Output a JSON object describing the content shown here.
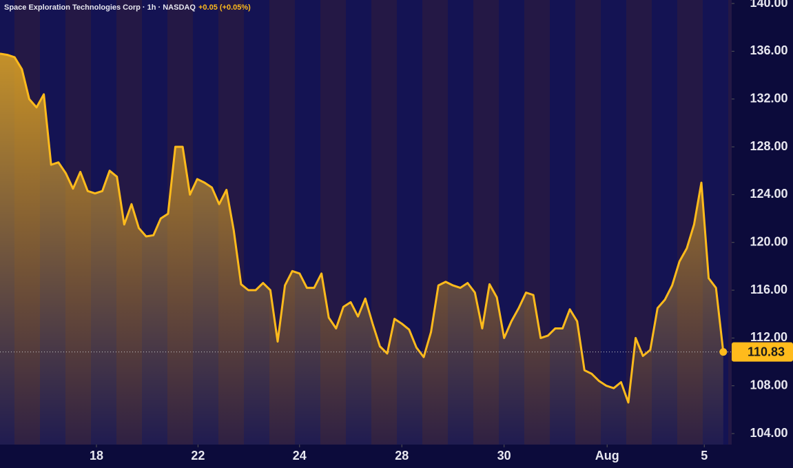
{
  "chart_data": {
    "type": "line",
    "title": "Space Exploration Technologies Corp · 1h · NASDAQ",
    "subtitle": "+0.05 (+0.05%)",
    "x": [
      0,
      1,
      2,
      3,
      4,
      5,
      6,
      7,
      8,
      9,
      10,
      11,
      12,
      13,
      14,
      15,
      16,
      17,
      18,
      19,
      20,
      21,
      22,
      23,
      24,
      25,
      26,
      27,
      28,
      29,
      30,
      31,
      32,
      33,
      34,
      35,
      36,
      37,
      38,
      39,
      40,
      41,
      42,
      43,
      44,
      45,
      46,
      47,
      48,
      49,
      50,
      51,
      52,
      53,
      54,
      55,
      56,
      57,
      58,
      59,
      60,
      61,
      62,
      63,
      64,
      65,
      66,
      67,
      68,
      69,
      70,
      71,
      72,
      73,
      74,
      75,
      76,
      77,
      78,
      79,
      80,
      81,
      82,
      83,
      84,
      85,
      86,
      87,
      88,
      89,
      90,
      91,
      92,
      93,
      94,
      95,
      96,
      97,
      98,
      99
    ],
    "series": [
      {
        "color": "#ffbb1c",
        "values": [
          135.8,
          135.7,
          135.5,
          134.5,
          132,
          131.3,
          132.4,
          126.5,
          126.7,
          125.8,
          124.5,
          125.9,
          124.3,
          124.1,
          124.3,
          126,
          125.5,
          121.5,
          123.2,
          121.2,
          120.5,
          120.6,
          122,
          122.4,
          128,
          128,
          124,
          125.3,
          125,
          124.6,
          123.2,
          124.4,
          121,
          116.5,
          116,
          116,
          116.6,
          116,
          111.7,
          116.4,
          117.6,
          117.4,
          116.2,
          116.2,
          117.4,
          113.7,
          112.8,
          114.6,
          115,
          113.8,
          115.3,
          113.2,
          111.3,
          110.7,
          113.6,
          113.2,
          112.7,
          111.2,
          110.4,
          112.5,
          116.4,
          116.7,
          116.4,
          116.2,
          116.6,
          115.8,
          112.8,
          116.5,
          115.4,
          112,
          113.4,
          114.5,
          115.8,
          115.6,
          112,
          112.2,
          112.8,
          112.8,
          114.4,
          113.4,
          109.3,
          109,
          108.4,
          108,
          107.8,
          108.3,
          106.6,
          112,
          110.5,
          111,
          114.5,
          115.2,
          116.4,
          118.4,
          119.5,
          121.5,
          125,
          117,
          116.2,
          110.83
        ]
      }
    ],
    "xlim": [
      0,
      99.3
    ],
    "xticks": [
      {
        "value": 13.2,
        "label": "18"
      },
      {
        "value": 27.1,
        "label": "22"
      },
      {
        "value": 41,
        "label": "24"
      },
      {
        "value": 55,
        "label": "28"
      },
      {
        "value": 69,
        "label": "30"
      },
      {
        "value": 83.1,
        "label": "Aug"
      },
      {
        "value": 96.4,
        "label": "5"
      }
    ],
    "ylim": [
      103.08,
      140.29
    ],
    "yticks": [
      {
        "value": 104,
        "label": "104.00"
      },
      {
        "value": 108,
        "label": "108.00"
      },
      {
        "value": 112,
        "label": "112.00"
      },
      {
        "value": 116,
        "label": "116.00"
      },
      {
        "value": 120,
        "label": "120.00"
      },
      {
        "value": 124,
        "label": "124.00"
      },
      {
        "value": 128,
        "label": "128.00"
      },
      {
        "value": 132,
        "label": "132.00"
      },
      {
        "value": 136,
        "label": "136.00"
      },
      {
        "value": 140,
        "label": "140.00"
      }
    ]
  }
}
